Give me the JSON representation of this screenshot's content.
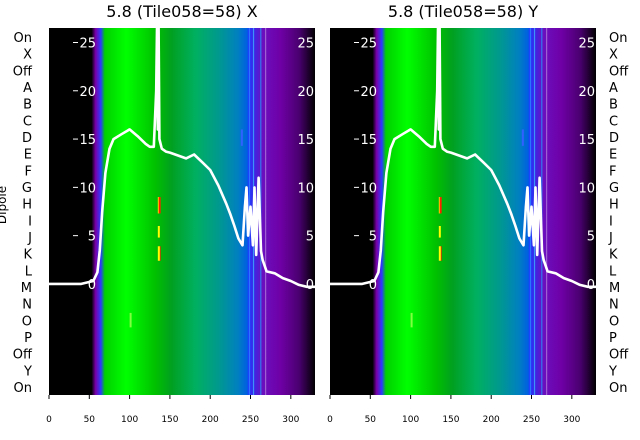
{
  "chart_data": [
    {
      "type": "heatmap",
      "title": "5.8 (Tile058=58) X",
      "ylabel": "Dipole",
      "row_labels": [
        "On",
        "X",
        "Off",
        "A",
        "B",
        "C",
        "D",
        "E",
        "F",
        "G",
        "H",
        "I",
        "J",
        "K",
        "L",
        "M",
        "N",
        "O",
        "P",
        "Off",
        "Y",
        "On"
      ],
      "x_ticks": [
        0,
        50,
        100,
        150,
        200,
        250,
        300
      ],
      "xlim": [
        0,
        330
      ],
      "overlay_yticks": [
        0,
        5,
        10,
        15,
        20,
        25
      ],
      "overlay_ylim": [
        -11.5,
        26.5
      ],
      "overlay_line": {
        "x": [
          0,
          40,
          55,
          60,
          63,
          66,
          70,
          75,
          80,
          90,
          100,
          110,
          120,
          125,
          130,
          133,
          134,
          135,
          136,
          137,
          140,
          145,
          150,
          160,
          170,
          180,
          190,
          200,
          210,
          220,
          225,
          230,
          235,
          240,
          243,
          245,
          247,
          250,
          253,
          255,
          257,
          260,
          263,
          265,
          270,
          280,
          290,
          300,
          310,
          320,
          330
        ],
        "y": [
          0,
          0,
          0.3,
          1.2,
          3.5,
          7.5,
          11.5,
          14,
          15,
          15.5,
          16,
          15.3,
          14.5,
          14.2,
          14.2,
          20,
          33,
          16,
          30,
          15,
          14,
          13.7,
          13.6,
          13.3,
          13,
          13.4,
          12.6,
          11.8,
          10.2,
          8.3,
          7.2,
          6,
          4.7,
          4,
          8,
          10,
          5,
          8,
          4,
          10,
          3,
          11,
          3.4,
          2.5,
          1.3,
          1.1,
          0.6,
          0.3,
          -0.1,
          -0.3,
          -0.3
        ]
      }
    },
    {
      "type": "heatmap",
      "title": "5.8 (Tile058=58) Y",
      "ylabel": "",
      "row_labels": [
        "On",
        "X",
        "Off",
        "A",
        "B",
        "C",
        "D",
        "E",
        "F",
        "G",
        "H",
        "I",
        "J",
        "K",
        "L",
        "M",
        "N",
        "O",
        "P",
        "Off",
        "Y",
        "On"
      ],
      "x_ticks": [
        0,
        50,
        100,
        150,
        200,
        250,
        300
      ],
      "xlim": [
        0,
        330
      ],
      "overlay_yticks": [
        0,
        5,
        10,
        15,
        20,
        25
      ],
      "overlay_ylim": [
        -11.5,
        26.5
      ],
      "overlay_line": {
        "x": [
          0,
          40,
          55,
          60,
          63,
          66,
          70,
          75,
          80,
          90,
          100,
          110,
          120,
          125,
          130,
          133,
          134,
          135,
          136,
          137,
          140,
          145,
          150,
          160,
          170,
          180,
          190,
          200,
          210,
          220,
          225,
          230,
          235,
          240,
          243,
          245,
          247,
          250,
          253,
          255,
          257,
          260,
          263,
          265,
          270,
          280,
          290,
          300,
          310,
          320,
          330
        ],
        "y": [
          0,
          0,
          0.3,
          1.2,
          3.5,
          7.5,
          11.5,
          14,
          15,
          15.5,
          16,
          15.3,
          14.5,
          14.2,
          14.2,
          20,
          33,
          16,
          30,
          15,
          14,
          13.7,
          13.6,
          13.3,
          13,
          13.4,
          12.6,
          11.8,
          10.2,
          8.3,
          7.2,
          6,
          4.7,
          4,
          8,
          10,
          5,
          8,
          4,
          10,
          3,
          11,
          3.4,
          2.5,
          1.3,
          1.1,
          0.6,
          0.3,
          -0.1,
          -0.3,
          -0.3
        ]
      }
    }
  ],
  "colors": {
    "spectrum": [
      "#000000",
      "#000000",
      "#7a00a8",
      "#2b3bff",
      "#00d000",
      "#00ff00",
      "#00c000",
      "#00a020",
      "#00b060",
      "#009890",
      "#0080c0",
      "#0060e0",
      "#1c38ff",
      "#6a10c0",
      "#6f00a6",
      "#4a0070",
      "#000000"
    ],
    "overlay_line": "#ffffff",
    "marker_yellow": "#ffff00",
    "marker_red": "#ff2000"
  }
}
